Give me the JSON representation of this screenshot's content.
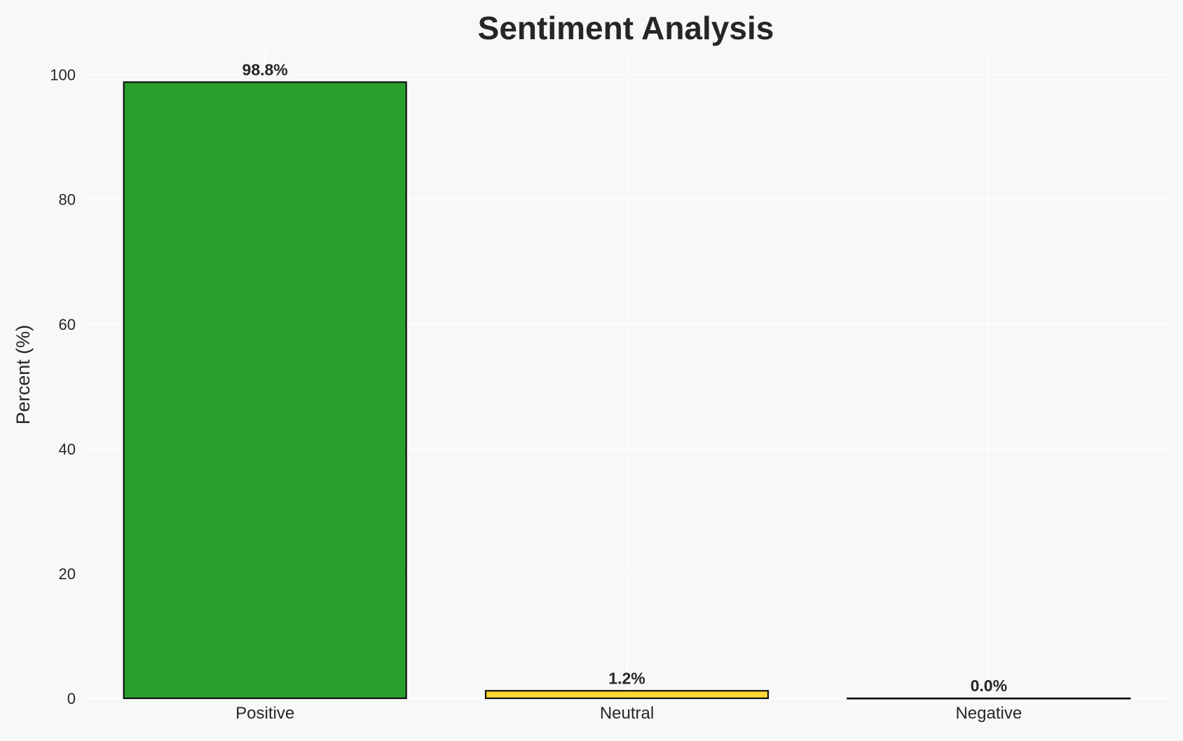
{
  "chart_data": {
    "type": "bar",
    "title": "Sentiment Analysis",
    "xlabel": "",
    "ylabel": "Percent (%)",
    "categories": [
      "Positive",
      "Neutral",
      "Negative"
    ],
    "values": [
      98.8,
      1.2,
      0.0
    ],
    "data_labels": [
      "98.8%",
      "1.2%",
      "0.0%"
    ],
    "colors": [
      "#2ca02c",
      "#fdd835",
      "#d62728"
    ],
    "ylim": [
      0,
      104
    ],
    "yticks": [
      0,
      20,
      40,
      60,
      80,
      100
    ],
    "grid": true,
    "background": "#f8f8f8",
    "edge_color": "#111111"
  }
}
